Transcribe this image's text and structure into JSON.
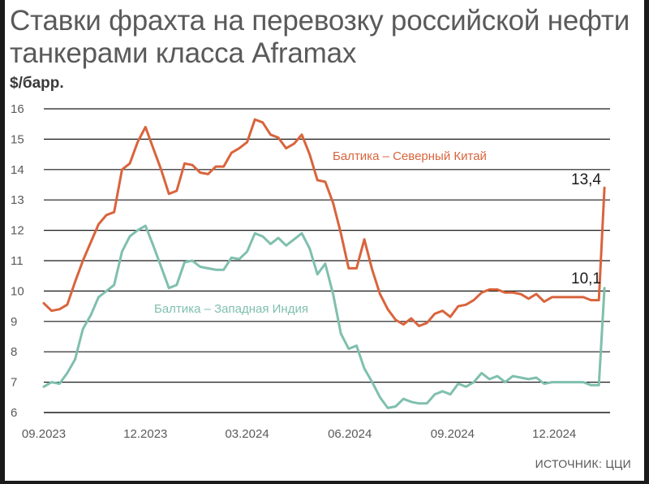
{
  "title": "Ставки фрахта на перевозку российской нефти танкерами класса Aframax",
  "unit": "$/барр.",
  "source": "ИСТОЧНИК: ЦЦИ",
  "colors": {
    "north_china": "#d9643c",
    "west_india": "#7fbfae",
    "grid": "#1a1a1a"
  },
  "chart_data": {
    "type": "line",
    "ylim": [
      6,
      16
    ],
    "yticks": [
      6,
      7,
      8,
      9,
      10,
      11,
      12,
      13,
      14,
      15,
      16
    ],
    "x_ticks": [
      "09.2023",
      "12.2023",
      "03.2024",
      "06.2024",
      "09.2024",
      "12.2024"
    ],
    "x_range": [
      "2023-09-01",
      "2025-01-20"
    ],
    "grid": "horizontal",
    "series": [
      {
        "name": "Балтика – Северный Китай",
        "end_label": "13,4",
        "x": [
          "2023-09-01",
          "2023-09-08",
          "2023-09-15",
          "2023-09-22",
          "2023-09-29",
          "2023-10-06",
          "2023-10-13",
          "2023-10-20",
          "2023-10-27",
          "2023-11-03",
          "2023-11-10",
          "2023-11-17",
          "2023-11-24",
          "2023-12-01",
          "2023-12-08",
          "2023-12-15",
          "2023-12-22",
          "2023-12-29",
          "2024-01-05",
          "2024-01-12",
          "2024-01-19",
          "2024-01-26",
          "2024-02-02",
          "2024-02-09",
          "2024-02-16",
          "2024-02-23",
          "2024-03-01",
          "2024-03-08",
          "2024-03-15",
          "2024-03-22",
          "2024-03-29",
          "2024-04-05",
          "2024-04-12",
          "2024-04-19",
          "2024-04-26",
          "2024-05-03",
          "2024-05-10",
          "2024-05-17",
          "2024-05-24",
          "2024-05-31",
          "2024-06-07",
          "2024-06-14",
          "2024-06-21",
          "2024-06-28",
          "2024-07-05",
          "2024-07-12",
          "2024-07-19",
          "2024-07-26",
          "2024-08-02",
          "2024-08-09",
          "2024-08-16",
          "2024-08-23",
          "2024-08-30",
          "2024-09-06",
          "2024-09-13",
          "2024-09-20",
          "2024-09-27",
          "2024-10-04",
          "2024-10-11",
          "2024-10-18",
          "2024-10-25",
          "2024-11-01",
          "2024-11-08",
          "2024-11-15",
          "2024-11-22",
          "2024-11-29",
          "2024-12-06",
          "2024-12-13",
          "2024-12-20",
          "2024-12-27",
          "2025-01-03",
          "2025-01-10",
          "2025-01-15"
        ],
        "values": [
          9.6,
          9.35,
          9.4,
          9.55,
          10.3,
          11.0,
          11.6,
          12.2,
          12.5,
          12.6,
          14.0,
          14.2,
          14.9,
          15.4,
          14.7,
          14.0,
          13.2,
          13.3,
          14.2,
          14.15,
          13.9,
          13.85,
          14.1,
          14.1,
          14.55,
          14.7,
          14.9,
          15.65,
          15.55,
          15.15,
          15.05,
          14.7,
          14.85,
          15.15,
          14.5,
          13.65,
          13.6,
          12.9,
          11.9,
          10.75,
          10.75,
          11.7,
          10.7,
          9.9,
          9.4,
          9.05,
          8.9,
          9.1,
          8.85,
          8.95,
          9.25,
          9.35,
          9.15,
          9.5,
          9.55,
          9.7,
          9.95,
          10.05,
          10.05,
          9.95,
          9.95,
          9.9,
          9.75,
          9.9,
          9.65,
          9.8,
          9.8,
          9.8,
          9.8,
          9.8,
          9.7,
          9.7,
          13.4
        ]
      },
      {
        "name": "Балтика – Западная Индия",
        "end_label": "10,1",
        "x": [
          "2023-09-01",
          "2023-09-08",
          "2023-09-15",
          "2023-09-22",
          "2023-09-29",
          "2023-10-06",
          "2023-10-13",
          "2023-10-20",
          "2023-10-27",
          "2023-11-03",
          "2023-11-10",
          "2023-11-17",
          "2023-11-24",
          "2023-12-01",
          "2023-12-08",
          "2023-12-15",
          "2023-12-22",
          "2023-12-29",
          "2024-01-05",
          "2024-01-12",
          "2024-01-19",
          "2024-01-26",
          "2024-02-02",
          "2024-02-09",
          "2024-02-16",
          "2024-02-23",
          "2024-03-01",
          "2024-03-08",
          "2024-03-15",
          "2024-03-22",
          "2024-03-29",
          "2024-04-05",
          "2024-04-12",
          "2024-04-19",
          "2024-04-26",
          "2024-05-03",
          "2024-05-10",
          "2024-05-17",
          "2024-05-24",
          "2024-05-31",
          "2024-06-07",
          "2024-06-14",
          "2024-06-21",
          "2024-06-28",
          "2024-07-05",
          "2024-07-12",
          "2024-07-19",
          "2024-07-26",
          "2024-08-02",
          "2024-08-09",
          "2024-08-16",
          "2024-08-23",
          "2024-08-30",
          "2024-09-06",
          "2024-09-13",
          "2024-09-20",
          "2024-09-27",
          "2024-10-04",
          "2024-10-11",
          "2024-10-18",
          "2024-10-25",
          "2024-11-01",
          "2024-11-08",
          "2024-11-15",
          "2024-11-22",
          "2024-11-29",
          "2024-12-06",
          "2024-12-13",
          "2024-12-20",
          "2024-12-27",
          "2025-01-03",
          "2025-01-10",
          "2025-01-15"
        ],
        "values": [
          6.85,
          7.0,
          6.95,
          7.3,
          7.75,
          8.75,
          9.2,
          9.8,
          10.0,
          10.2,
          11.3,
          11.8,
          12.0,
          12.15,
          11.5,
          10.8,
          10.1,
          10.2,
          10.95,
          11.0,
          10.8,
          10.75,
          10.7,
          10.7,
          11.1,
          11.05,
          11.3,
          11.9,
          11.8,
          11.55,
          11.75,
          11.5,
          11.7,
          11.9,
          11.4,
          10.55,
          10.9,
          9.9,
          8.6,
          8.1,
          8.2,
          7.45,
          7.0,
          6.5,
          6.15,
          6.2,
          6.45,
          6.35,
          6.3,
          6.3,
          6.6,
          6.7,
          6.6,
          6.95,
          6.85,
          7.0,
          7.3,
          7.1,
          7.2,
          7.0,
          7.2,
          7.15,
          7.1,
          7.15,
          6.95,
          7.0,
          7.0,
          7.0,
          7.0,
          7.0,
          6.9,
          6.9,
          10.1
        ]
      }
    ]
  }
}
